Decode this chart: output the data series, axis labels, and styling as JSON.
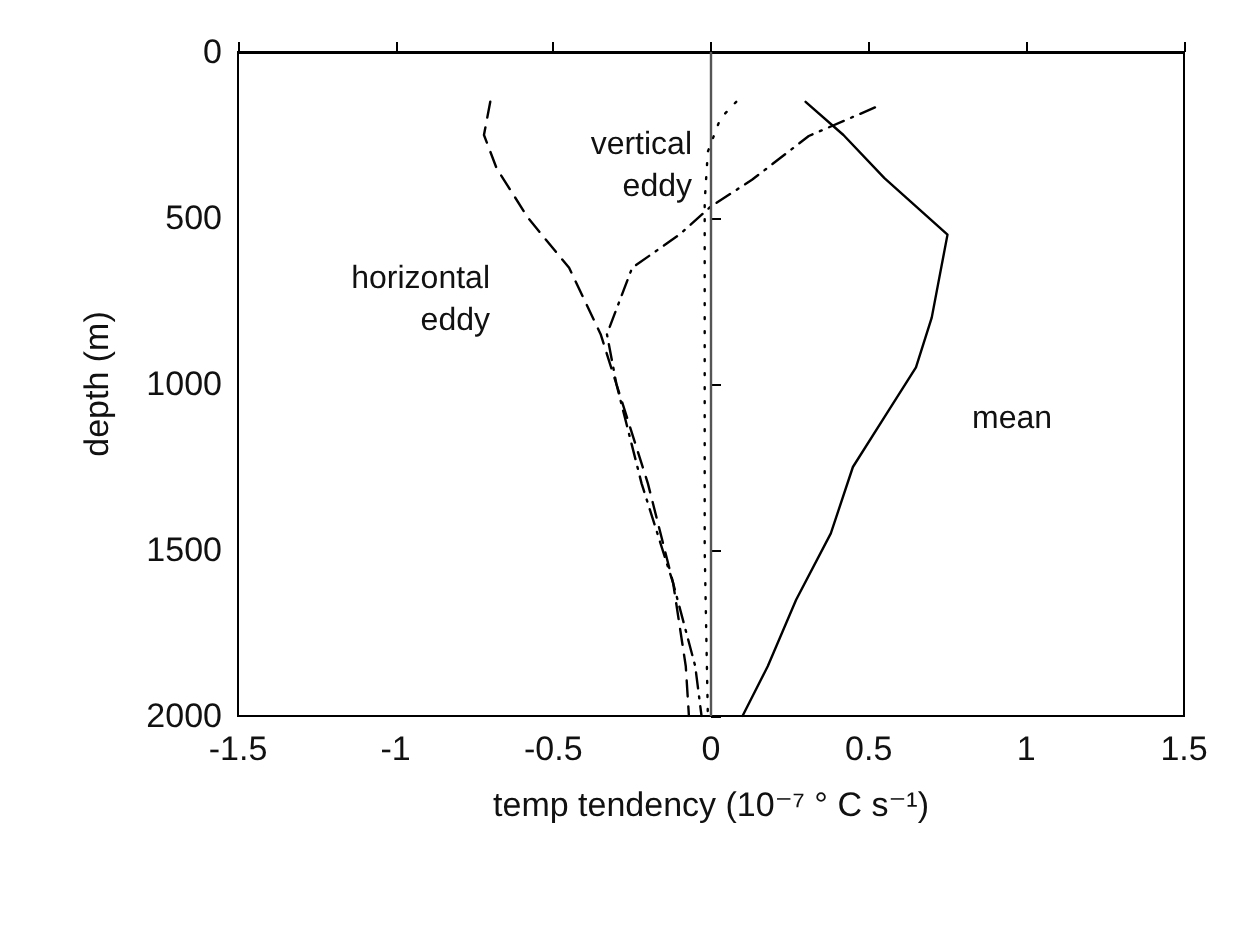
{
  "chart_data": {
    "type": "line",
    "xlabel": "temp tendency (10⁻⁷ ° C s⁻¹)",
    "ylabel": "depth (m)",
    "xlim": [
      -1.5,
      1.5
    ],
    "xticks": [
      -1.5,
      -1,
      -0.5,
      0,
      0.5,
      1,
      1.5
    ],
    "ylim": [
      2000,
      0
    ],
    "yticks": [
      0,
      500,
      1000,
      1500,
      2000
    ],
    "grid": false,
    "marker": "none",
    "series": [
      {
        "color": "#000000",
        "line_style": "solid",
        "x": [
          0.3,
          0.42,
          0.55,
          0.75,
          0.72,
          0.7,
          0.65,
          0.55,
          0.45,
          0.38,
          0.27,
          0.18,
          0.1
        ],
        "values": [
          150,
          250,
          380,
          550,
          700,
          800,
          950,
          1100,
          1250,
          1450,
          1650,
          1850,
          2000
        ]
      },
      {
        "color": "#000000",
        "line_style": "dashed",
        "x": [
          -0.7,
          -0.72,
          -0.68,
          -0.58,
          -0.45,
          -0.35,
          -0.3,
          -0.2,
          -0.12,
          -0.08,
          -0.07
        ],
        "values": [
          150,
          250,
          350,
          500,
          650,
          850,
          1000,
          1300,
          1600,
          1850,
          2000
        ]
      },
      {
        "color": "#000000",
        "line_style": "dashdot",
        "x": [
          0.52,
          0.31,
          0.13,
          0,
          -0.1,
          -0.25,
          -0.33,
          -0.3,
          -0.22,
          -0.12,
          -0.05,
          -0.03
        ],
        "values": [
          167,
          253,
          385,
          465,
          550,
          650,
          850,
          1000,
          1300,
          1600,
          1850,
          2000
        ]
      },
      {
        "color": "#000000",
        "line_style": "dotted",
        "x": [
          0.08,
          0.03,
          -0.01,
          -0.02,
          -0.02,
          -0.02,
          -0.02,
          -0.01
        ],
        "values": [
          150,
          200,
          300,
          450,
          700,
          1000,
          1500,
          2000
        ]
      }
    ],
    "ref_lines": [
      {
        "axis": "x",
        "value": 0,
        "color": "#555555",
        "line_style": "solid"
      }
    ],
    "annotations": [
      "horizontal\neddy",
      "vertical\neddy",
      "mean"
    ]
  }
}
